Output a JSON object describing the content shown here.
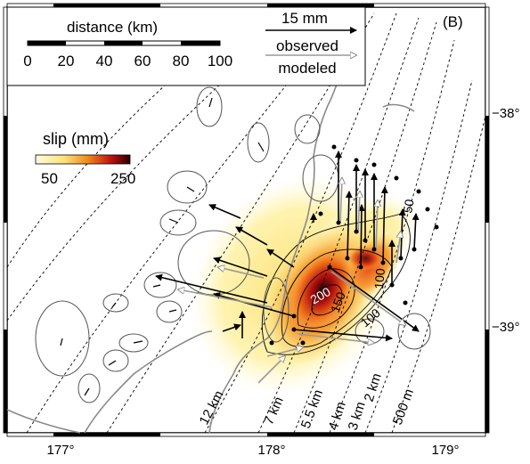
{
  "panel_label": "(B)",
  "scale_bar": {
    "title": "distance (km)",
    "ticks": [
      "0",
      "20",
      "40",
      "60",
      "80",
      "100"
    ]
  },
  "vector_legend": {
    "magnitude": "15 mm",
    "observed": "observed",
    "modeled": "modeled"
  },
  "colorbar": {
    "title": "slip (mm)",
    "min_label": "50",
    "max_label": "250"
  },
  "latitude_labels": [
    "−38°",
    "−39°"
  ],
  "longitude_labels": [
    "177°",
    "178°",
    "179°"
  ],
  "depth_contour_labels": [
    "12 km",
    "7 km",
    "5.5 km",
    "4 km",
    "3 km",
    "2 km",
    "500 m"
  ],
  "slip_contour_labels": [
    "200",
    "150",
    "100",
    "100",
    "50"
  ],
  "colors": {
    "coast": "#8a8a8a",
    "observed_vector": "#000000",
    "modeled_vector": "#9a9a9a",
    "slip_low": "#fff6a0",
    "slip_mid": "#f08a1a",
    "slip_high": "#c01010",
    "slip_peak": "#2a0000"
  }
}
